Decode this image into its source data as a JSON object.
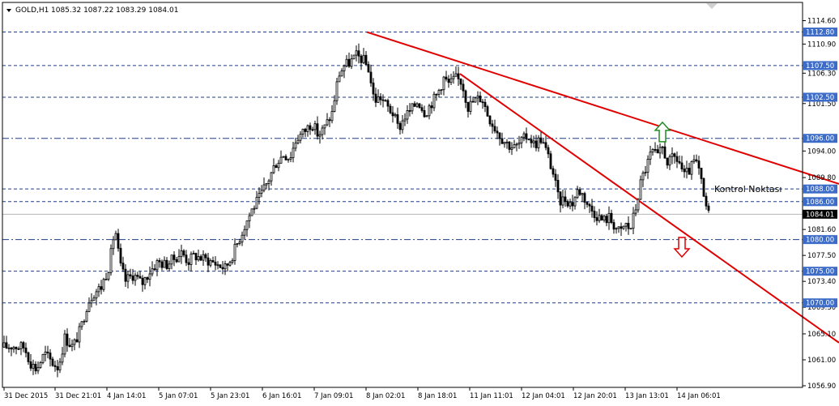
{
  "header": {
    "symbol_label": "GOLD,H1",
    "ohlc_text": "1085.32 1087.22 1083.29 1084.01",
    "collapse_icon": "triangle-down-icon"
  },
  "chart_data": {
    "type": "candlestick",
    "symbol": "GOLD",
    "timeframe": "H1",
    "last_price": "1084.01",
    "ylim": [
      1056.9,
      1116.2
    ],
    "y_ticks": [
      "1114.60",
      "1110.90",
      "1106.30",
      "1101.50",
      "1094.00",
      "1089.80",
      "1081.60",
      "1077.50",
      "1073.40",
      "1069.30",
      "1065.10",
      "1061.00",
      "1056.90"
    ],
    "x_ticks": [
      "31 Dec 2015",
      "31 Dec 21:01",
      "4 Jan 14:01",
      "5 Jan 07:01",
      "5 Jan 23:01",
      "6 Jan 16:01",
      "7 Jan 09:01",
      "8 Jan 02:01",
      "8 Jan 18:01",
      "11 Jan 11:01",
      "12 Jan 04:01",
      "12 Jan 20:01",
      "13 Jan 13:01",
      "14 Jan 06:01"
    ],
    "levels": [
      {
        "label": "1112.80",
        "value": 1112.8,
        "style": "dashed"
      },
      {
        "label": "1107.50",
        "value": 1107.5,
        "style": "dashed"
      },
      {
        "label": "1102.50",
        "value": 1102.5,
        "style": "dashed"
      },
      {
        "label": "1096.00",
        "value": 1096.0,
        "style": "dashdot"
      },
      {
        "label": "1088.00",
        "value": 1088.0,
        "style": "dashed"
      },
      {
        "label": "1086.00",
        "value": 1086.0,
        "style": "dashed"
      },
      {
        "label": "1080.00",
        "value": 1080.0,
        "style": "dashdot"
      },
      {
        "label": "1075.00",
        "value": 1075.0,
        "style": "dashed"
      },
      {
        "label": "1070.00",
        "value": 1070.0,
        "style": "dashed"
      }
    ],
    "price_path": [
      [
        0,
        1062.9
      ],
      [
        15,
        1063.2
      ],
      [
        30,
        1063.0
      ],
      [
        38,
        1060.5
      ],
      [
        45,
        1059.5
      ],
      [
        55,
        1062.0
      ],
      [
        65,
        1060.5
      ],
      [
        72,
        1059.8
      ],
      [
        80,
        1064.5
      ],
      [
        90,
        1063.0
      ],
      [
        100,
        1066.0
      ],
      [
        108,
        1070.0
      ],
      [
        115,
        1071.5
      ],
      [
        125,
        1072.5
      ],
      [
        135,
        1076.0
      ],
      [
        142,
        1082.0
      ],
      [
        148,
        1076.0
      ],
      [
        155,
        1073.5
      ],
      [
        165,
        1074.5
      ],
      [
        175,
        1073.0
      ],
      [
        185,
        1075.0
      ],
      [
        195,
        1076.5
      ],
      [
        205,
        1076.0
      ],
      [
        215,
        1077.0
      ],
      [
        225,
        1078.0
      ],
      [
        232,
        1076.5
      ],
      [
        240,
        1077.5
      ],
      [
        250,
        1077.0
      ],
      [
        262,
        1076.5
      ],
      [
        270,
        1076.0
      ],
      [
        278,
        1075.5
      ],
      [
        285,
        1077.0
      ],
      [
        295,
        1080.0
      ],
      [
        303,
        1082.5
      ],
      [
        312,
        1085.0
      ],
      [
        320,
        1086.5
      ],
      [
        330,
        1089.0
      ],
      [
        340,
        1092.0
      ],
      [
        350,
        1093.5
      ],
      [
        358,
        1093.0
      ],
      [
        366,
        1096.0
      ],
      [
        375,
        1097.0
      ],
      [
        385,
        1098.5
      ],
      [
        393,
        1096.5
      ],
      [
        400,
        1097.5
      ],
      [
        410,
        1100.0
      ],
      [
        418,
        1106.0
      ],
      [
        425,
        1107.5
      ],
      [
        432,
        1108.0
      ],
      [
        440,
        1109.0
      ],
      [
        448,
        1108.5
      ],
      [
        455,
        1107.0
      ],
      [
        462,
        1102.0
      ],
      [
        470,
        1102.5
      ],
      [
        478,
        1101.0
      ],
      [
        485,
        1100.0
      ],
      [
        492,
        1097.5
      ],
      [
        500,
        1099.5
      ],
      [
        508,
        1100.5
      ],
      [
        516,
        1102.0
      ],
      [
        525,
        1100.0
      ],
      [
        532,
        1101.5
      ],
      [
        540,
        1103.0
      ],
      [
        548,
        1105.5
      ],
      [
        555,
        1104.5
      ],
      [
        562,
        1105.5
      ],
      [
        570,
        1105.0
      ],
      [
        578,
        1101.0
      ],
      [
        586,
        1102.0
      ],
      [
        595,
        1102.5
      ],
      [
        603,
        1099.5
      ],
      [
        612,
        1097.5
      ],
      [
        620,
        1096.0
      ],
      [
        628,
        1095.0
      ],
      [
        636,
        1094.5
      ],
      [
        644,
        1095.5
      ],
      [
        652,
        1096.5
      ],
      [
        660,
        1095.0
      ],
      [
        668,
        1096.0
      ],
      [
        676,
        1093.5
      ],
      [
        684,
        1090.0
      ],
      [
        690,
        1086.0
      ],
      [
        698,
        1086.5
      ],
      [
        706,
        1085.5
      ],
      [
        714,
        1088.0
      ],
      [
        720,
        1087.0
      ],
      [
        728,
        1085.0
      ],
      [
        736,
        1084.0
      ],
      [
        744,
        1083.0
      ],
      [
        752,
        1083.5
      ],
      [
        760,
        1082.0
      ],
      [
        766,
        1081.0
      ],
      [
        772,
        1082.5
      ],
      [
        778,
        1081.5
      ],
      [
        785,
        1085.0
      ],
      [
        792,
        1089.5
      ],
      [
        798,
        1091.5
      ],
      [
        805,
        1094.0
      ],
      [
        812,
        1093.0
      ],
      [
        818,
        1094.5
      ],
      [
        825,
        1092.0
      ],
      [
        832,
        1093.0
      ],
      [
        838,
        1092.5
      ],
      [
        845,
        1090.0
      ],
      [
        852,
        1091.0
      ],
      [
        858,
        1092.5
      ],
      [
        864,
        1090.5
      ],
      [
        869,
        1086.5
      ],
      [
        875,
        1084.0
      ]
    ],
    "trendlines": [
      {
        "from": [
          453,
          1112.8
        ],
        "to": [
          1036,
          1088.8
        ],
        "color": "#e00000"
      },
      {
        "from": [
          568,
          1106.2
        ],
        "to": [
          1036,
          1063.7
        ],
        "color": "#e00000"
      }
    ],
    "arrows": [
      {
        "name": "up-arrow",
        "direction": "up",
        "at": [
          818,
          1097.0
        ],
        "color": "#228b22"
      },
      {
        "name": "down-arrow",
        "direction": "down",
        "at": [
          842,
          1078.8
        ],
        "color": "#e00000"
      }
    ],
    "annotation": {
      "text": "Kontrol Noktası",
      "at": [
        882,
        1087.5
      ]
    }
  }
}
